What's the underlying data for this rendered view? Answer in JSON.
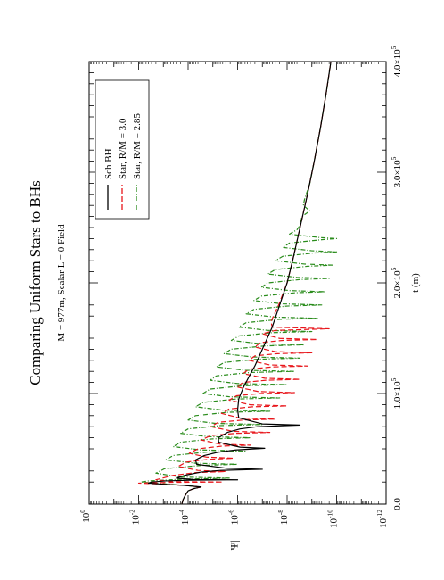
{
  "chart_data": {
    "type": "line",
    "orientation": "rotated-90-ccw",
    "title": "Comparing Uniform Stars to BHs",
    "subtitle": "M = 977m, Scalar L = 0 Field",
    "xlabel": "t (m)",
    "ylabel": "|Ψ|",
    "xlim": [
      0,
      400000
    ],
    "ylim": [
      1e-12,
      1
    ],
    "yscale": "log",
    "x_tick_labels": [
      {
        "value": 0,
        "label": "0.0"
      },
      {
        "value": 100000,
        "label": "1.0×10",
        "exp": "5"
      },
      {
        "value": 200000,
        "label": "2.0×10",
        "exp": "5"
      },
      {
        "value": 300000,
        "label": "3.0×10",
        "exp": "5"
      },
      {
        "value": 400000,
        "label": "4.0×10",
        "exp": "5"
      }
    ],
    "y_tick_labels": [
      {
        "value": 1,
        "label": "10",
        "exp": "0"
      },
      {
        "value": 0.01,
        "label": "10",
        "exp": "-2"
      },
      {
        "value": 0.0001,
        "label": "10",
        "exp": "-4"
      },
      {
        "value": 1e-06,
        "label": "10",
        "exp": "-6"
      },
      {
        "value": 1e-08,
        "label": "10",
        "exp": "-8"
      },
      {
        "value": 1e-10,
        "label": "10",
        "exp": "-10"
      },
      {
        "value": 1e-12,
        "label": "10",
        "exp": "-12"
      }
    ],
    "legend_position": "top-right",
    "grid": false,
    "series": [
      {
        "name": "Sch BH",
        "color": "#000000",
        "style": "solid",
        "points": [
          [
            0,
            0.00018
          ],
          [
            4000,
            0.00016
          ],
          [
            8000,
            0.00013
          ],
          [
            12000,
            0.0001
          ],
          [
            14000,
            6e-05
          ],
          [
            15500,
            3e-05
          ],
          [
            17000,
            0.00015
          ],
          [
            18000,
            0.001
          ],
          [
            19000,
            0.004
          ],
          [
            20000,
            0.003
          ],
          [
            21000,
            0.0008
          ],
          [
            21700,
            8e-05
          ],
          [
            22000,
            1e-06
          ],
          [
            22300,
            6e-05
          ],
          [
            23500,
            0.0003
          ],
          [
            26000,
            0.00014
          ],
          [
            29000,
            3e-05
          ],
          [
            30500,
            5e-06
          ],
          [
            31500,
            1e-07
          ],
          [
            32500,
            3e-06
          ],
          [
            36000,
            4.5e-05
          ],
          [
            40000,
            5e-05
          ],
          [
            44000,
            2.2e-05
          ],
          [
            47000,
            6e-06
          ],
          [
            49000,
            1.2e-06
          ],
          [
            50500,
            8e-08
          ],
          [
            51500,
            8e-07
          ],
          [
            56000,
            5.8e-06
          ],
          [
            60000,
            6e-06
          ],
          [
            65000,
            2.5e-06
          ],
          [
            68000,
            8e-07
          ],
          [
            70000,
            1.6e-07
          ],
          [
            71500,
            3e-09
          ],
          [
            72500,
            1e-07
          ],
          [
            78000,
            9e-07
          ],
          [
            85000,
            1e-06
          ],
          [
            95000,
            9e-07
          ],
          [
            105000,
            6e-07
          ],
          [
            115000,
            3.5e-07
          ],
          [
            125000,
            2e-07
          ],
          [
            140000,
            1e-07
          ],
          [
            160000,
            4e-08
          ],
          [
            180000,
            2e-08
          ],
          [
            200000,
            1e-08
          ],
          [
            220000,
            6e-09
          ],
          [
            250000,
            3e-09
          ],
          [
            280000,
            1.5e-09
          ],
          [
            310000,
            8e-10
          ],
          [
            340000,
            4.5e-10
          ],
          [
            370000,
            2.7e-10
          ],
          [
            400000,
            1.7e-10
          ]
        ]
      },
      {
        "name": "Star, R/M = 3.0",
        "color": "#e8161b",
        "style": "dashed",
        "points": [
          [
            0,
            0.00018
          ],
          [
            4000,
            0.00016
          ],
          [
            8000,
            0.00013
          ],
          [
            12000,
            0.0001
          ],
          [
            14000,
            6e-05
          ],
          [
            15500,
            3e-05
          ],
          [
            17000,
            0.00015
          ],
          [
            18000,
            0.0008
          ],
          [
            19000,
            0.01
          ],
          [
            19700,
            0.0005
          ],
          [
            20000,
            4e-06
          ],
          [
            20300,
            0.0004
          ],
          [
            22000,
            0.002
          ],
          [
            26000,
            0.0004
          ],
          [
            28500,
            5e-05
          ],
          [
            29500,
            3e-06
          ],
          [
            30500,
            4e-05
          ],
          [
            34000,
            0.00025
          ],
          [
            38000,
            0.00012
          ],
          [
            40500,
            1.5e-05
          ],
          [
            41500,
            1.5e-06
          ],
          [
            42500,
            1.8e-05
          ],
          [
            46000,
            9e-05
          ],
          [
            50000,
            4e-05
          ],
          [
            52500,
            4e-06
          ],
          [
            53300,
            3e-07
          ],
          [
            54200,
            5e-06
          ],
          [
            58000,
            3e-05
          ],
          [
            62000,
            1.2e-05
          ],
          [
            64000,
            1.2e-06
          ],
          [
            64800,
            5e-08
          ],
          [
            65800,
            1.5e-06
          ],
          [
            70000,
            1.2e-05
          ],
          [
            74000,
            6e-06
          ],
          [
            76000,
            6e-07
          ],
          [
            76800,
            3e-08
          ],
          [
            77800,
            8e-07
          ],
          [
            82000,
            4.5e-06
          ],
          [
            86000,
            2.2e-06
          ],
          [
            88000,
            2.5e-07
          ],
          [
            88800,
            1e-08
          ],
          [
            89800,
            3e-07
          ],
          [
            94000,
            2.2e-06
          ],
          [
            98000,
            1.1e-06
          ],
          [
            100000,
            1.2e-07
          ],
          [
            100800,
            5e-09
          ],
          [
            101800,
            1.5e-07
          ],
          [
            106000,
            1.1e-06
          ],
          [
            110000,
            6e-07
          ],
          [
            112000,
            7e-08
          ],
          [
            112800,
            3e-09
          ],
          [
            113800,
            8e-08
          ],
          [
            118000,
            6e-07
          ],
          [
            122000,
            3.5e-07
          ],
          [
            124000,
            4e-08
          ],
          [
            124800,
            1.5e-09
          ],
          [
            125800,
            5e-08
          ],
          [
            130000,
            3.5e-07
          ],
          [
            134000,
            2e-07
          ],
          [
            136000,
            2.5e-08
          ],
          [
            136800,
            1e-09
          ],
          [
            137800,
            3e-08
          ],
          [
            142000,
            2e-07
          ],
          [
            146000,
            1.2e-07
          ],
          [
            148000,
            1.5e-08
          ],
          [
            148800,
            6e-10
          ],
          [
            149800,
            2e-08
          ],
          [
            154000,
            1e-07
          ],
          [
            157000,
            3e-08
          ],
          [
            158500,
            2e-10
          ],
          [
            160000,
            4e-08
          ],
          [
            165000,
            4.5e-08
          ],
          [
            180000,
            2.2e-08
          ],
          [
            200000,
            1e-08
          ],
          [
            220000,
            6e-09
          ],
          [
            250000,
            3e-09
          ],
          [
            280000,
            1.5e-09
          ],
          [
            310000,
            8e-10
          ],
          [
            340000,
            4.5e-10
          ],
          [
            370000,
            2.7e-10
          ],
          [
            400000,
            1.7e-10
          ]
        ]
      },
      {
        "name": "Star, R/M = 2.85",
        "color": "#2a8c1c",
        "style": "dash-dot",
        "points": [
          [
            0,
            0.00018
          ],
          [
            4000,
            0.00016
          ],
          [
            8000,
            0.00013
          ],
          [
            12000,
            0.0001
          ],
          [
            14000,
            6e-05
          ],
          [
            15500,
            3e-05
          ],
          [
            17000,
            0.00015
          ],
          [
            18000,
            0.0006
          ],
          [
            20000,
            0.008
          ],
          [
            21000,
            0.004
          ],
          [
            22500,
            0.0002
          ],
          [
            23500,
            2e-06
          ],
          [
            24500,
            0.0002
          ],
          [
            28000,
            0.002
          ],
          [
            32000,
            0.0009
          ],
          [
            35000,
            3e-05
          ],
          [
            36000,
            1e-06
          ],
          [
            37000,
            5e-05
          ],
          [
            40000,
            0.0008
          ],
          [
            44000,
            0.0004
          ],
          [
            47000,
            2e-05
          ],
          [
            48000,
            5e-07
          ],
          [
            49000,
            3e-05
          ],
          [
            52000,
            0.0004
          ],
          [
            56000,
            0.0002
          ],
          [
            59000,
            1e-05
          ],
          [
            60000,
            3e-07
          ],
          [
            61000,
            1.5e-05
          ],
          [
            64000,
            0.0002
          ],
          [
            68000,
            0.0001
          ],
          [
            71000,
            5e-06
          ],
          [
            72000,
            1e-07
          ],
          [
            73000,
            8e-06
          ],
          [
            76000,
            0.0001
          ],
          [
            80000,
            5e-05
          ],
          [
            83000,
            2.5e-06
          ],
          [
            84000,
            5e-08
          ],
          [
            85000,
            4e-06
          ],
          [
            88000,
            5e-05
          ],
          [
            92000,
            2.5e-05
          ],
          [
            95000,
            1.2e-06
          ],
          [
            96000,
            2e-08
          ],
          [
            97000,
            2e-06
          ],
          [
            100000,
            2.5e-05
          ],
          [
            104000,
            1.3e-05
          ],
          [
            107000,
            6e-07
          ],
          [
            108000,
            1e-08
          ],
          [
            109000,
            1e-06
          ],
          [
            112000,
            1.3e-05
          ],
          [
            116000,
            7e-06
          ],
          [
            119000,
            3e-07
          ],
          [
            120000,
            5e-09
          ],
          [
            121000,
            5e-07
          ],
          [
            124000,
            7e-06
          ],
          [
            128000,
            3.5e-06
          ],
          [
            131000,
            1.5e-07
          ],
          [
            132000,
            3e-09
          ],
          [
            133000,
            2.5e-07
          ],
          [
            136000,
            3.5e-06
          ],
          [
            140000,
            1.8e-06
          ],
          [
            143000,
            8e-08
          ],
          [
            144000,
            2e-09
          ],
          [
            145000,
            1.2e-07
          ],
          [
            148000,
            1.8e-06
          ],
          [
            152000,
            9e-07
          ],
          [
            155000,
            4e-08
          ],
          [
            156000,
            1e-09
          ],
          [
            157000,
            6e-08
          ],
          [
            160000,
            9e-07
          ],
          [
            164000,
            4.5e-07
          ],
          [
            167000,
            2e-08
          ],
          [
            168000,
            6e-10
          ],
          [
            169000,
            3e-08
          ],
          [
            172000,
            4.5e-07
          ],
          [
            176000,
            2.2e-07
          ],
          [
            179000,
            1e-08
          ],
          [
            180000,
            4e-10
          ],
          [
            181000,
            1.5e-08
          ],
          [
            184000,
            2.2e-07
          ],
          [
            188000,
            1.1e-07
          ],
          [
            191000,
            5e-09
          ],
          [
            192000,
            3e-10
          ],
          [
            193000,
            8e-09
          ],
          [
            196000,
            1.1e-07
          ],
          [
            200000,
            6e-08
          ],
          [
            203000,
            3e-09
          ],
          [
            204000,
            2e-10
          ],
          [
            205000,
            4e-09
          ],
          [
            208000,
            6e-08
          ],
          [
            212000,
            3e-08
          ],
          [
            215000,
            1.5e-09
          ],
          [
            216000,
            1.5e-10
          ],
          [
            217000,
            2e-09
          ],
          [
            220000,
            3e-08
          ],
          [
            224000,
            1.5e-08
          ],
          [
            227000,
            8e-10
          ],
          [
            228000,
            1e-10
          ],
          [
            229000,
            1e-09
          ],
          [
            232000,
            1.5e-08
          ],
          [
            236000,
            8e-09
          ],
          [
            239000,
            4e-10
          ],
          [
            240000,
            1e-10
          ],
          [
            241000,
            5e-10
          ],
          [
            244000,
            8e-09
          ],
          [
            248000,
            4e-09
          ],
          [
            252000,
            3e-09
          ],
          [
            260000,
            2.5e-09
          ],
          [
            265000,
            1.2e-09
          ],
          [
            270000,
            2.2e-09
          ],
          [
            275000,
            2e-09
          ],
          [
            290000,
            1.2e-09
          ],
          [
            310000,
            8e-10
          ],
          [
            340000,
            4.5e-10
          ],
          [
            370000,
            2.7e-10
          ],
          [
            400000,
            1.7e-10
          ]
        ]
      }
    ]
  }
}
